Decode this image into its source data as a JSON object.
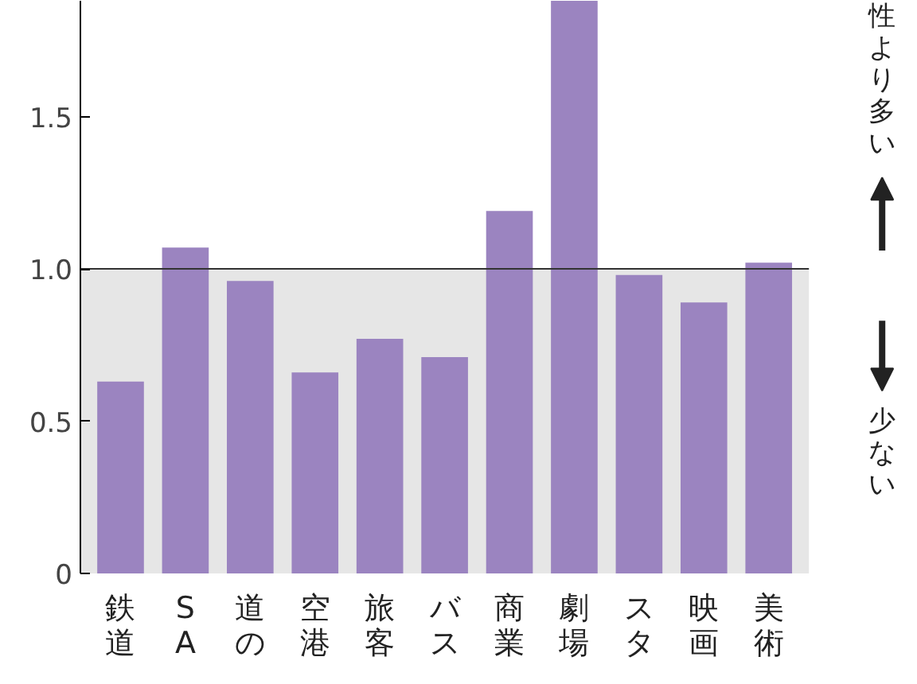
{
  "chart_data": {
    "type": "bar",
    "categories": [
      "鉄道",
      "SA",
      "道の",
      "空港",
      "旅客",
      "バス",
      "商業",
      "劇場",
      "スタ",
      "映画",
      "美術"
    ],
    "values": [
      0.63,
      1.07,
      0.96,
      0.66,
      0.77,
      0.71,
      1.19,
      1.88,
      0.98,
      0.89,
      1.02
    ],
    "color": "#9b84c0",
    "ylim": [
      0,
      1.88
    ],
    "yticks": [
      0,
      0.5,
      {
        "value": 1.0,
        "label": "1.0"
      },
      1.5
    ],
    "ref_lines": [
      {
        "axis": "y",
        "value": 1.0,
        "color": "#333333"
      }
    ],
    "bands": [
      {
        "axis": "y",
        "from": 0,
        "to": 1.0,
        "color": "#e6e6e6"
      }
    ],
    "annotations": [
      "性より多い",
      "少ない"
    ],
    "grid": false
  }
}
